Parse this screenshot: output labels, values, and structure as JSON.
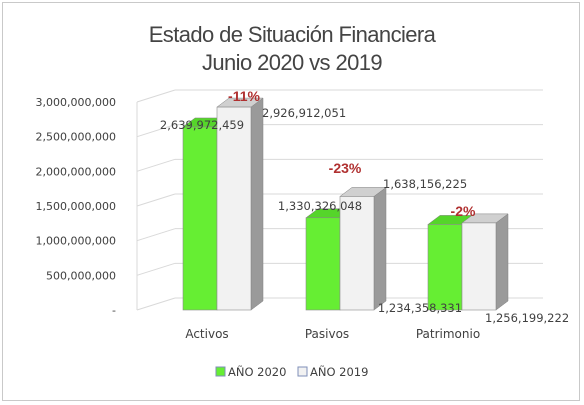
{
  "chart_data": {
    "type": "bar",
    "title": "Estado de Situación Financiera",
    "subtitle": "Junio 2020 vs 2019",
    "categories": [
      "Activos",
      "Pasivos",
      "Patrimonio"
    ],
    "series": [
      {
        "name": "AÑO 2020",
        "color": "#66ee33",
        "values": [
          2639972459,
          1330326048,
          1234358331
        ]
      },
      {
        "name": "AÑO 2019",
        "color": "#f2f2f2",
        "values": [
          2926912051,
          1638156225,
          1256199222
        ]
      }
    ],
    "value_labels": {
      "AÑO 2020": [
        "2,639,972,459",
        "1,330,326,048",
        "1,234,358,331"
      ],
      "AÑO 2019": [
        "2,926,912,051",
        "1,638,156,225",
        "1,256,199,222"
      ]
    },
    "annotations": [
      "-11%",
      "-23%",
      "-2%"
    ],
    "yticks": [
      0,
      500000000,
      1000000000,
      1500000000,
      2000000000,
      2500000000,
      3000000000
    ],
    "ytick_labels": [
      "-",
      "500,000,000",
      "1,000,000,000",
      "1,500,000,000",
      "2,000,000,000",
      "2,500,000,000",
      "3,000,000,000"
    ],
    "ylim": [
      0,
      3000000000
    ],
    "xlabel": "",
    "ylabel": "",
    "grid": true,
    "legend_position": "bottom",
    "style": "3d-clustered-column"
  }
}
